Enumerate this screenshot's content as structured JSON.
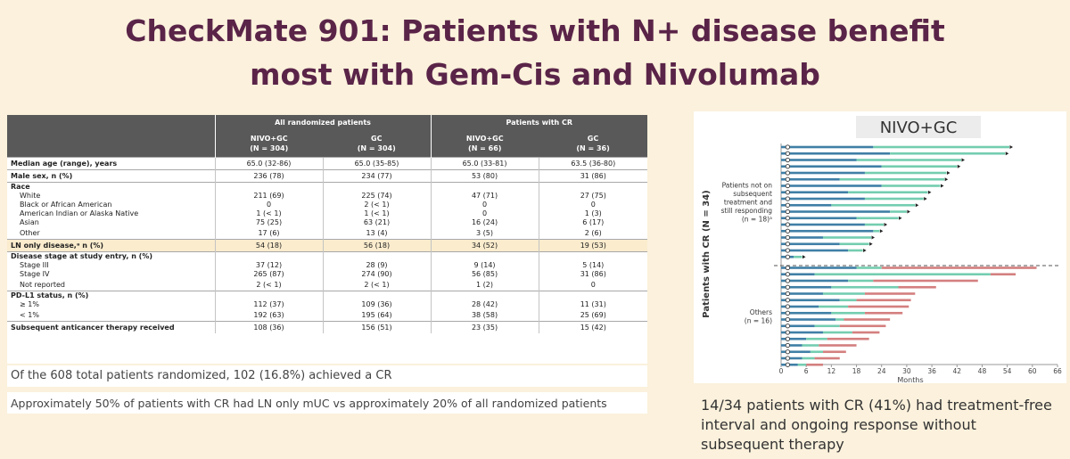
{
  "title": {
    "line1": "CheckMate 901: Patients with N+ disease benefit",
    "line2": "most with Gem-Cis and Nivolumab"
  },
  "table": {
    "group_headers": [
      "All randomized patients",
      "Patients with CR"
    ],
    "columns": [
      {
        "name": "NIVO+GC",
        "n": "(N = 304)"
      },
      {
        "name": "GC",
        "n": "(N = 304)"
      },
      {
        "name": "NIVO+GC",
        "n": "(N = 66)"
      },
      {
        "name": "GC",
        "n": "(N = 36)"
      }
    ],
    "rows": [
      {
        "label": "Median age (range), years",
        "bold": true,
        "sep": true,
        "values": [
          "65.0 (32-86)",
          "65.0 (35-85)",
          "65.0 (33-81)",
          "63.5 (36-80)"
        ]
      },
      {
        "label": "Male sex, n (%)",
        "bold": true,
        "sep": true,
        "values": [
          "236 (78)",
          "234 (77)",
          "53 (80)",
          "31 (86)"
        ]
      },
      {
        "label": "Race",
        "bold": true,
        "sep": true,
        "values": [
          "",
          "",
          "",
          ""
        ]
      },
      {
        "label": "White",
        "sub": true,
        "values": [
          "211 (69)",
          "225 (74)",
          "47 (71)",
          "27 (75)"
        ]
      },
      {
        "label": "Black or African American",
        "sub": true,
        "values": [
          "0",
          "2 (< 1)",
          "0",
          "0"
        ]
      },
      {
        "label": "American Indian or Alaska Native",
        "sub": true,
        "values": [
          "1 (< 1)",
          "1 (< 1)",
          "0",
          "1 (3)"
        ]
      },
      {
        "label": "Asian",
        "sub": true,
        "values": [
          "75 (25)",
          "63 (21)",
          "16 (24)",
          "6 (17)"
        ]
      },
      {
        "label": "Other",
        "sub": true,
        "values": [
          "17 (6)",
          "13 (4)",
          "3 (5)",
          "2 (6)"
        ]
      },
      {
        "label": "LN only disease,ᵃ n (%)",
        "bold": true,
        "sep": true,
        "highlight": true,
        "values": [
          "54 (18)",
          "56 (18)",
          "34 (52)",
          "19 (53)"
        ]
      },
      {
        "label": "Disease stage at study entry, n (%)",
        "bold": true,
        "sep": true,
        "values": [
          "",
          "",
          "",
          ""
        ]
      },
      {
        "label": "Stage III",
        "sub": true,
        "values": [
          "37 (12)",
          "28 (9)",
          "9 (14)",
          "5 (14)"
        ]
      },
      {
        "label": "Stage IV",
        "sub": true,
        "values": [
          "265 (87)",
          "274 (90)",
          "56 (85)",
          "31 (86)"
        ]
      },
      {
        "label": "Not reported",
        "sub": true,
        "values": [
          "2 (< 1)",
          "2 (< 1)",
          "1 (2)",
          "0"
        ]
      },
      {
        "label": "PD-L1 status, n (%)",
        "bold": true,
        "sep": true,
        "values": [
          "",
          "",
          "",
          ""
        ]
      },
      {
        "label": "≥ 1%",
        "sub": true,
        "values": [
          "112 (37)",
          "109 (36)",
          "28 (42)",
          "11 (31)"
        ]
      },
      {
        "label": "< 1%",
        "sub": true,
        "values": [
          "192 (63)",
          "195 (64)",
          "38 (58)",
          "25 (69)"
        ]
      },
      {
        "label": "Subsequent anticancer therapy received",
        "bold": true,
        "sep": true,
        "values": [
          "108 (36)",
          "156 (51)",
          "23 (35)",
          "15 (42)"
        ]
      }
    ]
  },
  "notes": {
    "line1": "Of the 608 total patients randomized, 102 (16.8%) achieved a CR",
    "line2": "Approximately 50% of patients with CR had LN only mUC vs approximately 20% of all randomized patients"
  },
  "chart_data": {
    "type": "swimmer",
    "title": "NIVO+GC",
    "ylabel": "Patients with CR (N = 34)",
    "xlabel": "Months",
    "xlim": [
      0,
      66
    ],
    "xticks": [
      "0",
      "6",
      "12",
      "18",
      "24",
      "30",
      "36",
      "42",
      "48",
      "54",
      "60",
      "66"
    ],
    "groups": [
      {
        "label_lines": [
          "Patients not on",
          "subsequent",
          "treatment and",
          "still responding",
          "(n = 18)ᵃ"
        ]
      },
      {
        "label_lines": [
          "Others",
          "(n = 16)"
        ]
      }
    ],
    "colors": {
      "treatment": "#3f7fa6",
      "response": "#74cdb0",
      "subsequent": "#d47f7f",
      "divider": "#555555"
    },
    "patients": [
      {
        "group": 1,
        "treatment": 22,
        "end": 54.5,
        "subsequent": 0,
        "ongoing": true
      },
      {
        "group": 1,
        "treatment": 26,
        "end": 53.5,
        "subsequent": 0,
        "ongoing": true
      },
      {
        "group": 1,
        "treatment": 18,
        "end": 43,
        "subsequent": 0,
        "ongoing": true
      },
      {
        "group": 1,
        "treatment": 24,
        "end": 42,
        "subsequent": 0,
        "ongoing": true
      },
      {
        "group": 1,
        "treatment": 20,
        "end": 39.5,
        "subsequent": 0,
        "ongoing": true
      },
      {
        "group": 1,
        "treatment": 14,
        "end": 39,
        "subsequent": 0,
        "ongoing": true
      },
      {
        "group": 1,
        "treatment": 24,
        "end": 38,
        "subsequent": 0,
        "ongoing": true
      },
      {
        "group": 1,
        "treatment": 16,
        "end": 35,
        "subsequent": 0,
        "ongoing": true
      },
      {
        "group": 1,
        "treatment": 20,
        "end": 34,
        "subsequent": 0,
        "ongoing": true
      },
      {
        "group": 1,
        "treatment": 12,
        "end": 32,
        "subsequent": 0,
        "ongoing": true
      },
      {
        "group": 1,
        "treatment": 26,
        "end": 30,
        "subsequent": 0,
        "ongoing": true
      },
      {
        "group": 1,
        "treatment": 18,
        "end": 28,
        "subsequent": 0,
        "ongoing": true
      },
      {
        "group": 1,
        "treatment": 20,
        "end": 24.5,
        "subsequent": 0,
        "ongoing": true
      },
      {
        "group": 1,
        "treatment": 22,
        "end": 23.5,
        "subsequent": 0,
        "ongoing": true
      },
      {
        "group": 1,
        "treatment": 10,
        "end": 21.5,
        "subsequent": 0,
        "ongoing": true
      },
      {
        "group": 1,
        "treatment": 14,
        "end": 21,
        "subsequent": 0,
        "ongoing": true
      },
      {
        "group": 1,
        "treatment": 16,
        "end": 19.5,
        "subsequent": 0,
        "ongoing": true
      },
      {
        "group": 1,
        "treatment": 3,
        "end": 5,
        "subsequent": 0,
        "ongoing": true
      },
      {
        "group": 2,
        "treatment": 18,
        "end": 24,
        "subsequent": 61,
        "ongoing": false
      },
      {
        "group": 2,
        "treatment": 8,
        "end": 50,
        "subsequent": 56,
        "ongoing": false
      },
      {
        "group": 2,
        "treatment": 16,
        "end": 22,
        "subsequent": 47,
        "ongoing": false
      },
      {
        "group": 2,
        "treatment": 12,
        "end": 28,
        "subsequent": 37,
        "ongoing": false
      },
      {
        "group": 2,
        "treatment": 10,
        "end": 20,
        "subsequent": 32,
        "ongoing": false
      },
      {
        "group": 2,
        "treatment": 14,
        "end": 18,
        "subsequent": 31,
        "ongoing": false
      },
      {
        "group": 2,
        "treatment": 9,
        "end": 16,
        "subsequent": 30.5,
        "ongoing": false
      },
      {
        "group": 2,
        "treatment": 12,
        "end": 20,
        "subsequent": 29,
        "ongoing": false
      },
      {
        "group": 2,
        "treatment": 13,
        "end": 15,
        "subsequent": 26,
        "ongoing": false
      },
      {
        "group": 2,
        "treatment": 8,
        "end": 14,
        "subsequent": 25,
        "ongoing": false
      },
      {
        "group": 2,
        "treatment": 10,
        "end": 17,
        "subsequent": 23.5,
        "ongoing": false
      },
      {
        "group": 2,
        "treatment": 6,
        "end": 11,
        "subsequent": 21,
        "ongoing": false
      },
      {
        "group": 2,
        "treatment": 5,
        "end": 9,
        "subsequent": 18,
        "ongoing": false
      },
      {
        "group": 2,
        "treatment": 7,
        "end": 10,
        "subsequent": 15.5,
        "ongoing": false
      },
      {
        "group": 2,
        "treatment": 5,
        "end": 8,
        "subsequent": 14,
        "ongoing": false
      },
      {
        "group": 2,
        "treatment": 4,
        "end": 6,
        "subsequent": 10,
        "ongoing": false
      }
    ]
  },
  "caption": "14/34 patients with CR (41%) had treatment-free interval and ongoing response without subsequent therapy"
}
